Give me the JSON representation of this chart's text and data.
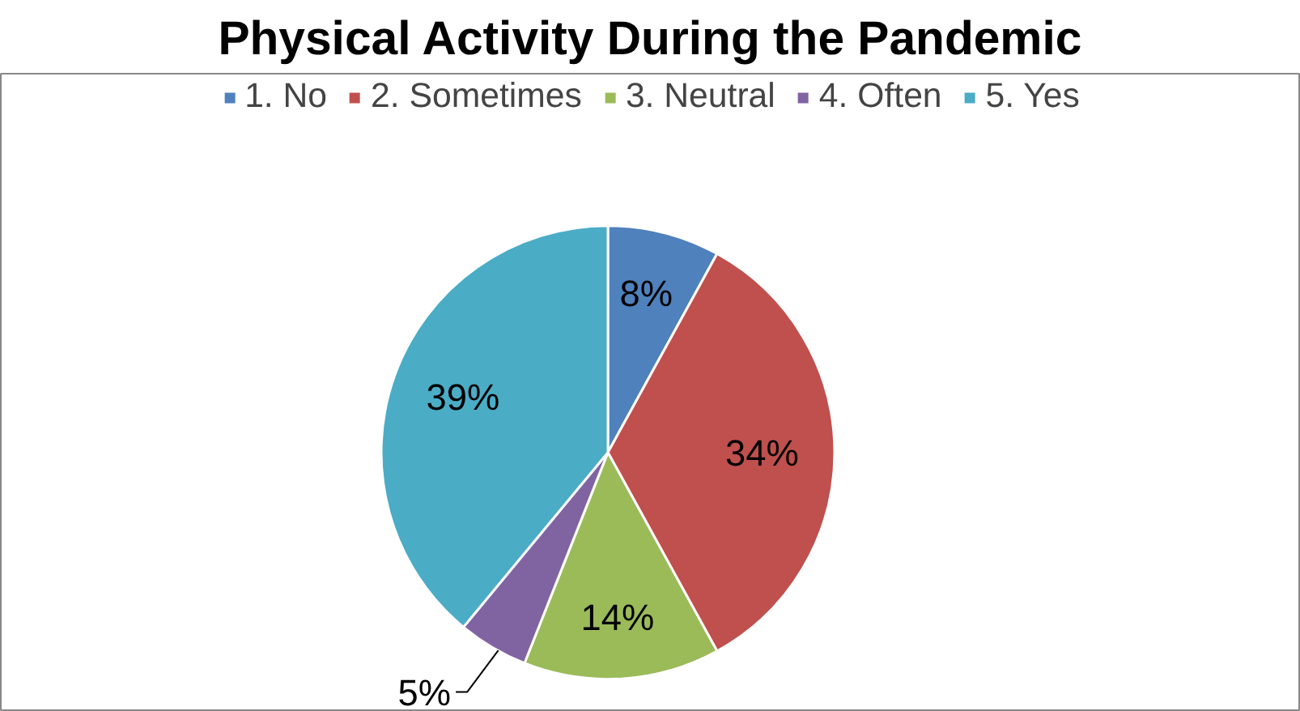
{
  "chart_data": {
    "type": "pie",
    "title": "Physical Activity During the Pandemic",
    "categories": [
      "1. No",
      "2. Sometimes",
      "3. Neutral",
      "4. Often",
      "5. Yes"
    ],
    "values": [
      8,
      34,
      14,
      5,
      39
    ],
    "colors": [
      "#4f81bd",
      "#c0504d",
      "#9bbb59",
      "#8064a2",
      "#4bacc6"
    ],
    "value_labels": [
      "8%",
      "34%",
      "14%",
      "5%",
      "39%"
    ],
    "legend": "top"
  }
}
